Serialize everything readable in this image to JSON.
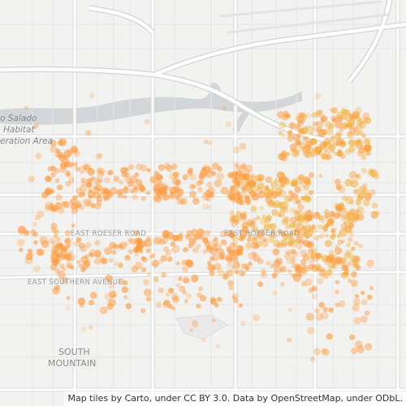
{
  "map": {
    "labels": {
      "park_line1": "o Salado",
      "park_line2": "Habitat",
      "park_line3": "eration Area",
      "road_roeser_west": "EAST ROESER ROAD",
      "road_roeser_east": "EAST ROESER ROAD",
      "road_southern": "EAST SOUTHERN AVENUE",
      "area_line1": "SOUTH",
      "area_line2": "MOUNTAIN"
    },
    "attribution": "Map tiles by Carto, under CC BY 3.0. Data by OpenStreetMap, under ODbL.",
    "colors": {
      "background": "#f2f2f1",
      "road": "#ffffff",
      "road_casing": "#d9d9d9",
      "river": "#d2d6d9",
      "point_fill": "#ff9a3c",
      "point_dense": "#f3b13a"
    },
    "layer": "point-density-heatmap"
  }
}
